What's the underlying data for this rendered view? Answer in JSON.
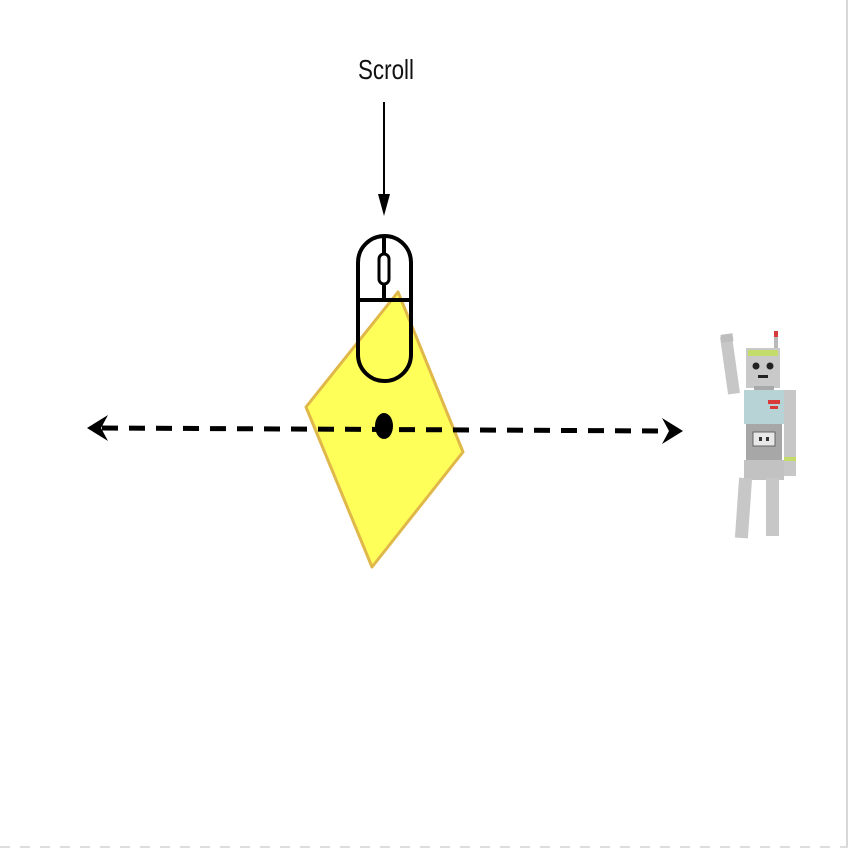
{
  "diagram": {
    "scroll_label": "Scroll"
  },
  "colors": {
    "diamond_fill": "#ffff5a",
    "diamond_stroke": "#e0b84a",
    "line": "#000000",
    "robot_gray": "#c7c7c7",
    "robot_dark": "#9a9a9a",
    "robot_chest": "#b7d3d6",
    "robot_accent": "#c4dc6a",
    "robot_red": "#d83a3a"
  },
  "icons": {
    "mouse": "mouse-icon",
    "robot": "robot-icon"
  }
}
